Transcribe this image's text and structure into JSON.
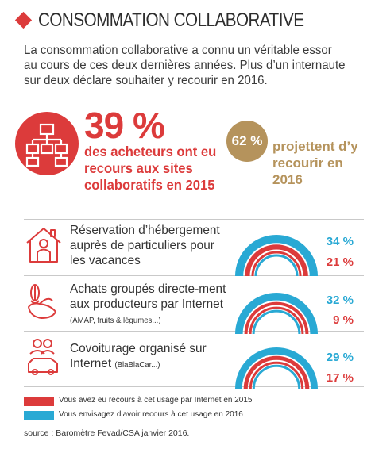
{
  "title": "CONSOMMATION COLLABORATIVE",
  "intro": "La consommation collaborative a connu un véritable essor au cours de ces deux dernières années. Plus d’un internaute sur deux déclare souhaiter y recourir en 2016.",
  "kpi1": {
    "value": "39 %",
    "caption": "des acheteurs ont eu recours aux sites collaboratifs en 2015",
    "icon": "network-icon"
  },
  "kpi2": {
    "value": "62 %",
    "caption": "projettent d’y recourir en 2016"
  },
  "colors": {
    "red": "#dc3b3b",
    "blue": "#29a9d4",
    "gold": "#b5935c"
  },
  "chart_data": {
    "type": "bar",
    "categories": [
      "Réservation d’hébergement auprès de particuliers pour les vacances",
      "Achats groupés directement aux producteurs par Internet (AMAP, fruits & légumes...)",
      "Covoiturage organisé sur Internet (BlaBlaCar...)"
    ],
    "series": [
      {
        "name": "Vous envisagez d’avoir recours à cet usage en 2016",
        "values": [
          34,
          32,
          29
        ],
        "color": "#29a9d4"
      },
      {
        "name": "Vous avez eu recours à cet usage par Internet en 2015",
        "values": [
          21,
          9,
          17
        ],
        "color": "#dc3b3b"
      }
    ]
  },
  "rows": [
    {
      "label_main": "Réservation d’hébergement auprès de particuliers pour les vacances",
      "label_small": "",
      "blue_label": "34 %",
      "red_label": "21 %",
      "icon": "house-icon"
    },
    {
      "label_main": "Achats groupés directe-ment aux producteurs par Internet",
      "label_small": "(AMAP, fruits & légumes...)",
      "blue_label": "32 %",
      "red_label": "9 %",
      "icon": "produce-icon"
    },
    {
      "label_main": "Covoiturage organisé sur Internet",
      "label_small": "(BlaBlaCar...)",
      "blue_label": "29 %",
      "red_label": "17 %",
      "icon": "carpool-icon"
    }
  ],
  "legend": {
    "red": "Vous avez eu recours à cet usage par Internet en 2015",
    "blue": "Vous envisagez d’avoir recours à cet usage en 2016"
  },
  "source": "source : Baromètre Fevad/CSA janvier 2016."
}
